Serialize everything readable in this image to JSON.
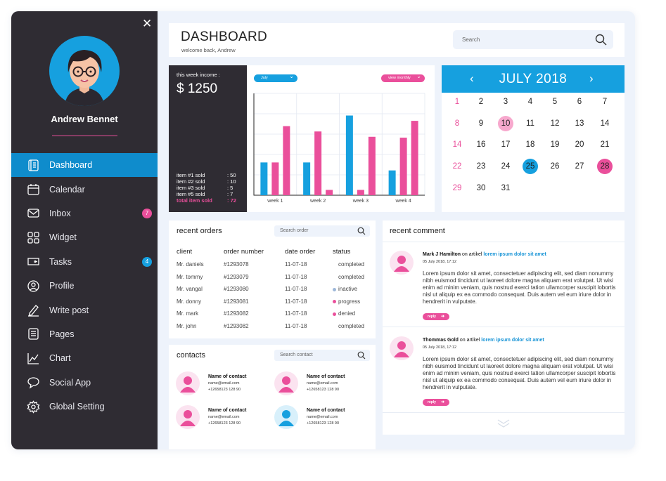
{
  "colors": {
    "accent": "#16a0df",
    "pink": "#ea4f9b",
    "dark": "#2f2c33",
    "bg": "#eef3fb"
  },
  "sidebar": {
    "close_icon": "close-icon",
    "user_name": "Andrew Bennet",
    "items": [
      {
        "label": "Dashboard",
        "icon": "dashboard-icon",
        "active": true
      },
      {
        "label": "Calendar",
        "icon": "calendar-icon"
      },
      {
        "label": "Inbox",
        "icon": "inbox-icon",
        "badge": "7"
      },
      {
        "label": "Widget",
        "icon": "widget-icon"
      },
      {
        "label": "Tasks",
        "icon": "tasks-icon",
        "badge": "4"
      },
      {
        "label": "Profile",
        "icon": "profile-icon"
      },
      {
        "label": "Write post",
        "icon": "write-post-icon"
      },
      {
        "label": "Pages",
        "icon": "pages-icon"
      },
      {
        "label": "Chart",
        "icon": "chart-icon"
      },
      {
        "label": "Social App",
        "icon": "social-app-icon"
      },
      {
        "label": "Global Setting",
        "icon": "gear-icon"
      }
    ]
  },
  "header": {
    "title": "DASHBOARD",
    "subtitle": "welcome back, Andrew",
    "search_placeholder": "Search"
  },
  "income": {
    "label": "this week income :",
    "amount": "$ 1250",
    "items": [
      {
        "name": "item #1 sold",
        "value": ": 50"
      },
      {
        "name": "item #2 sold",
        "value": ": 10"
      },
      {
        "name": "item #3 sold",
        "value": ": 5"
      },
      {
        "name": "item #5 sold",
        "value": ": 7"
      },
      {
        "name": "total item sold",
        "value": ": 72"
      }
    ]
  },
  "chart_controls": {
    "month": "July",
    "view": "view monthly"
  },
  "chart_data": {
    "type": "bar",
    "categories": [
      "week 1",
      "week 2",
      "week 3",
      "week 4"
    ],
    "series": [
      {
        "name": "blue",
        "color": "#16a0df",
        "values": [
          37,
          37,
          90,
          28
        ]
      },
      {
        "name": "pink",
        "color": "#ea4f9b",
        "values": [
          37,
          72,
          6,
          65
        ]
      },
      {
        "name": "pink2",
        "color": "#ea4f9b",
        "values": [
          78,
          6,
          66,
          84
        ]
      }
    ],
    "ylim": [
      0,
      115
    ],
    "grid": true
  },
  "calendar": {
    "month_label": "JULY 2018",
    "days": [
      [
        1,
        2,
        3,
        4,
        5,
        6,
        7
      ],
      [
        8,
        9,
        10,
        11,
        12,
        13,
        14
      ],
      [
        14,
        16,
        17,
        18,
        19,
        20,
        21
      ],
      [
        22,
        23,
        24,
        25,
        26,
        27,
        28
      ],
      [
        29,
        30,
        31
      ]
    ],
    "highlight_pink_light": [
      10
    ],
    "highlight_blue": [
      25
    ],
    "highlight_pink": [
      28
    ]
  },
  "orders": {
    "title": "recent orders",
    "search_placeholder": "Search order",
    "headers": [
      "client",
      "order number",
      "date order",
      "status"
    ],
    "rows": [
      {
        "client": "Mr. daniels",
        "order": "#1293078",
        "date": "11-07-18",
        "status": "completed",
        "dot": ""
      },
      {
        "client": "Mr. tommy",
        "order": "#1293079",
        "date": "11-07-18",
        "status": "completed",
        "dot": ""
      },
      {
        "client": "Mr. vangal",
        "order": "#1293080",
        "date": "11-07-18",
        "status": "inactive",
        "dot": "#9db7d9"
      },
      {
        "client": "Mr. donny",
        "order": "#1293081",
        "date": "11-07-18",
        "status": "progress",
        "dot": "#ea4f9b"
      },
      {
        "client": "Mr. mark",
        "order": "#1293082",
        "date": "11-07-18",
        "status": "denied",
        "dot": "#ea4f9b"
      },
      {
        "client": "Mr. john",
        "order": "#1293082",
        "date": "11-07-18",
        "status": "completed",
        "dot": ""
      }
    ]
  },
  "contacts": {
    "title": "contacts",
    "search_placeholder": "Search contact",
    "items": [
      {
        "name": "Name of contact",
        "email": "name@email.com",
        "phone": "+12658123 128 90",
        "color": "pink"
      },
      {
        "name": "Name of contact",
        "email": "name@email.com",
        "phone": "+12658123 128 90",
        "color": "pink"
      },
      {
        "name": "Name of contact",
        "email": "name@email.com",
        "phone": "+12658123 128 90",
        "color": "pink"
      },
      {
        "name": "Name of contact",
        "email": "name@email.com",
        "phone": "+12658123 128 90",
        "color": "blue"
      }
    ]
  },
  "comments": {
    "title": "recent comment",
    "items": [
      {
        "author": "Mark J Hamilton",
        "on": " on artikel ",
        "link": "lorem ipsum dolor sit amet",
        "date": "05 July 2018, 17:12",
        "text": "Lorem ipsum dolor sit amet, consectetuer adipiscing elit, sed diam nonummy nibh euismod tincidunt ut laoreet dolore magna aliquam erat volutpat. Ut wisi enim ad minim veniam, quis nostrud exerci tation ullamcorper suscipit lobortis nisl ut aliquip ex ea commodo consequat. Duis autem vel eum iriure dolor in hendrerit in vulputate.",
        "reply": "reply"
      },
      {
        "author": "Thommas Gold",
        "on": " on artikel ",
        "link": "lorem ipsum dolor sit amet",
        "date": "05 July 2018, 17:12",
        "text": "Lorem ipsum dolor sit amet, consectetuer adipiscing elit, sed diam nonummy nibh euismod tincidunt ut laoreet dolore magna aliquam erat volutpat. Ut wisi enim ad minim veniam, quis nostrud exerci tation ullamcorper suscipit lobortis nisl ut aliquip ex ea commodo consequat. Duis autem vel eum iriure dolor in hendrerit in vulputate.",
        "reply": "reply"
      }
    ]
  }
}
